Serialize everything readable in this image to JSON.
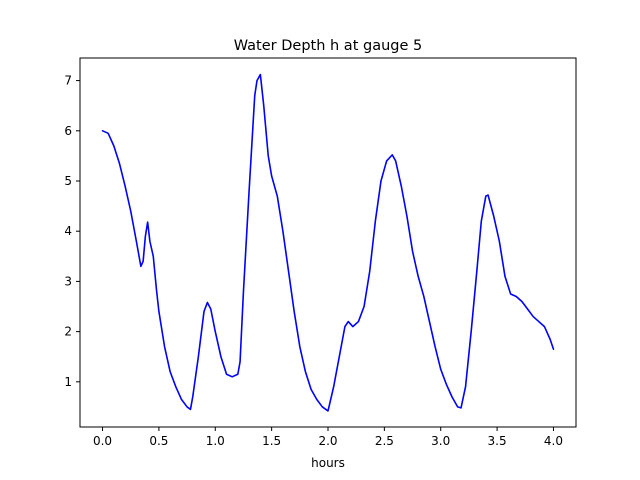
{
  "chart_data": {
    "type": "line",
    "title": "Water Depth h at gauge 5",
    "xlabel": "hours",
    "ylabel": "",
    "xlim": [
      -0.2,
      4.2
    ],
    "ylim": [
      0.1,
      7.45
    ],
    "xticks": [
      0.0,
      0.5,
      1.0,
      1.5,
      2.0,
      2.5,
      3.0,
      3.5,
      4.0
    ],
    "xtick_labels": [
      "0.0",
      "0.5",
      "1.0",
      "1.5",
      "2.0",
      "2.5",
      "3.0",
      "3.5",
      "4.0"
    ],
    "yticks": [
      1,
      2,
      3,
      4,
      5,
      6,
      7
    ],
    "ytick_labels": [
      "1",
      "2",
      "3",
      "4",
      "5",
      "6",
      "7"
    ],
    "grid": false,
    "series": [
      {
        "color": "#0000ff",
        "x": [
          0.0,
          0.05,
          0.1,
          0.15,
          0.2,
          0.25,
          0.3,
          0.34,
          0.36,
          0.38,
          0.4,
          0.42,
          0.45,
          0.48,
          0.5,
          0.55,
          0.6,
          0.65,
          0.7,
          0.75,
          0.78,
          0.8,
          0.85,
          0.9,
          0.93,
          0.96,
          1.0,
          1.05,
          1.1,
          1.15,
          1.2,
          1.22,
          1.25,
          1.3,
          1.35,
          1.37,
          1.4,
          1.43,
          1.47,
          1.5,
          1.55,
          1.6,
          1.65,
          1.7,
          1.75,
          1.8,
          1.85,
          1.9,
          1.95,
          2.0,
          2.05,
          2.1,
          2.15,
          2.18,
          2.22,
          2.27,
          2.32,
          2.37,
          2.42,
          2.47,
          2.52,
          2.57,
          2.6,
          2.65,
          2.7,
          2.75,
          2.8,
          2.85,
          2.9,
          2.95,
          3.0,
          3.05,
          3.1,
          3.15,
          3.18,
          3.22,
          3.27,
          3.32,
          3.36,
          3.4,
          3.42,
          3.47,
          3.52,
          3.57,
          3.62,
          3.67,
          3.72,
          3.77,
          3.82,
          3.87,
          3.92,
          3.97,
          4.0
        ],
        "y": [
          6.0,
          5.95,
          5.7,
          5.35,
          4.9,
          4.4,
          3.8,
          3.3,
          3.4,
          3.9,
          4.18,
          3.8,
          3.5,
          2.8,
          2.4,
          1.7,
          1.2,
          0.9,
          0.65,
          0.5,
          0.45,
          0.7,
          1.5,
          2.4,
          2.58,
          2.45,
          2.0,
          1.5,
          1.15,
          1.1,
          1.15,
          1.4,
          2.8,
          4.8,
          6.7,
          7.0,
          7.12,
          6.5,
          5.5,
          5.1,
          4.7,
          4.0,
          3.2,
          2.4,
          1.7,
          1.2,
          0.85,
          0.65,
          0.5,
          0.42,
          0.9,
          1.5,
          2.1,
          2.2,
          2.1,
          2.2,
          2.5,
          3.2,
          4.2,
          5.0,
          5.4,
          5.52,
          5.4,
          4.9,
          4.3,
          3.6,
          3.1,
          2.7,
          2.2,
          1.7,
          1.25,
          0.95,
          0.7,
          0.5,
          0.48,
          0.9,
          2.0,
          3.2,
          4.2,
          4.7,
          4.72,
          4.3,
          3.8,
          3.1,
          2.75,
          2.7,
          2.6,
          2.45,
          2.3,
          2.2,
          2.1,
          1.85,
          1.65
        ]
      }
    ]
  }
}
